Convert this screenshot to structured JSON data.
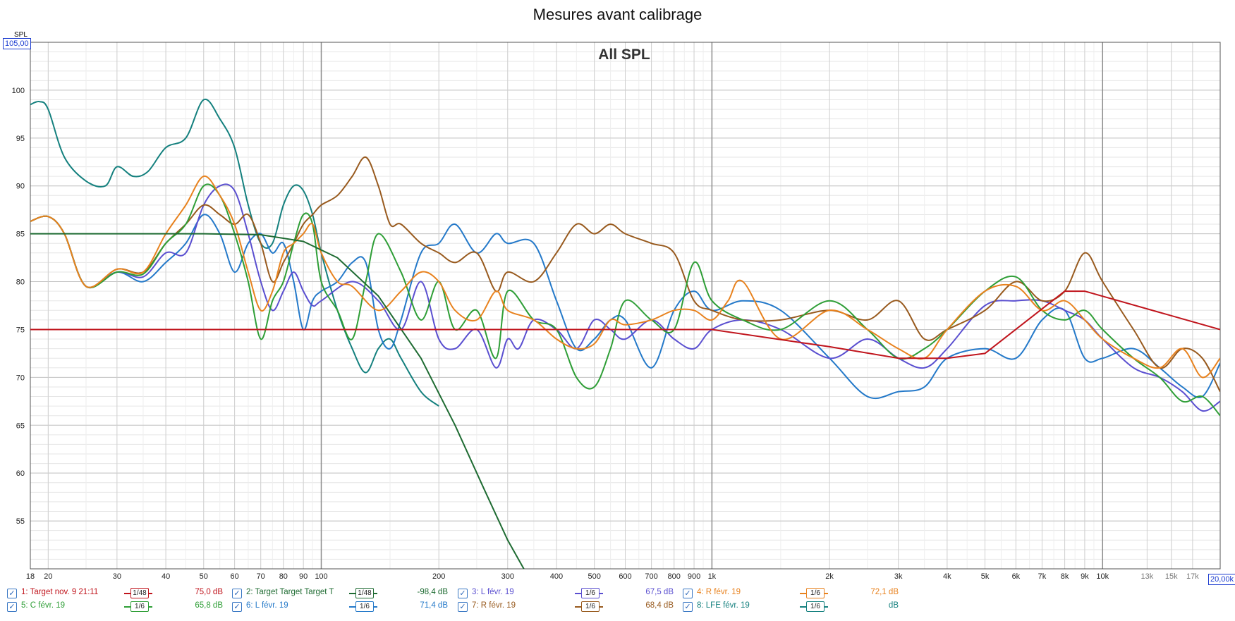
{
  "title": "Mesures avant calibrage",
  "y_axis_unit": "SPL",
  "y_max_box": "105,00",
  "x_max_box": "20,00k",
  "chart_data": {
    "type": "line",
    "title": "All SPL",
    "x_scale": "log",
    "xlim": [
      18,
      20000
    ],
    "ylim": [
      50,
      105
    ],
    "grid": true,
    "y_ticks": [
      "55",
      "60",
      "65",
      "70",
      "75",
      "80",
      "85",
      "90",
      "95",
      "100"
    ],
    "x_ticks": [
      "18",
      "20",
      "30",
      "40",
      "50",
      "60",
      "70",
      "80",
      "90",
      "100",
      "200",
      "300",
      "400",
      "500",
      "600",
      "700",
      "800",
      "900",
      "1k",
      "2k",
      "3k",
      "4k",
      "5k",
      "6k",
      "7k",
      "8k",
      "9k",
      "10k",
      "13k",
      "15k",
      "17k"
    ],
    "series": [
      {
        "name": "1: Target nov. 9 21:11",
        "color": "#c0141c",
        "smoothing": "1/48",
        "level": "75,0 dB",
        "x": [
          18,
          1000,
          2000,
          3000,
          4000,
          5000,
          8000,
          9000,
          20000
        ],
        "y": [
          75,
          75,
          73.2,
          72,
          72,
          72.5,
          79,
          79,
          75
        ]
      },
      {
        "name": "2: Target Target Target T",
        "color": "#1e6b32",
        "smoothing": "1/48",
        "level": "-98,4 dB",
        "x": [
          18,
          50,
          70,
          90,
          110,
          140,
          180,
          220,
          260,
          300,
          330
        ],
        "y": [
          85,
          85,
          84.9,
          84.2,
          82.5,
          78.5,
          72,
          65,
          58.5,
          53,
          50
        ]
      },
      {
        "name": "3: L févr. 19",
        "color": "#5a4fd0",
        "smoothing": "1/6",
        "level": "67,5 dB",
        "x": [
          18,
          20,
          22,
          25,
          30,
          35,
          40,
          45,
          50,
          55,
          60,
          65,
          70,
          75,
          80,
          85,
          90,
          95,
          100,
          120,
          140,
          160,
          180,
          200,
          220,
          250,
          280,
          300,
          320,
          350,
          400,
          450,
          500,
          550,
          600,
          700,
          800,
          900,
          1000,
          1200,
          1500,
          2000,
          2500,
          3000,
          3500,
          4000,
          5000,
          6000,
          7000,
          8000,
          9000,
          10000,
          12000,
          14000,
          16000,
          18000,
          20000
        ],
        "y": [
          86.3,
          86.8,
          85,
          79.5,
          81,
          80.5,
          83,
          83,
          88,
          90,
          89.5,
          85,
          80,
          77,
          79,
          81,
          79,
          77.5,
          78,
          80,
          78,
          75,
          80,
          74,
          73,
          75,
          71,
          74,
          73,
          76,
          75,
          73,
          76,
          75,
          74,
          76,
          74,
          73,
          75,
          76,
          75,
          72,
          74,
          72,
          71,
          73,
          77.5,
          78,
          78,
          77,
          76,
          74,
          71,
          70,
          68.5,
          66.5,
          67.5
        ]
      },
      {
        "name": "4: R févr. 19",
        "color": "#e8821e",
        "smoothing": "1/6",
        "level": "72,1 dB",
        "x": [
          18,
          20,
          22,
          25,
          30,
          35,
          40,
          45,
          50,
          55,
          60,
          65,
          70,
          75,
          80,
          85,
          90,
          95,
          100,
          110,
          120,
          140,
          160,
          180,
          200,
          220,
          250,
          280,
          300,
          350,
          400,
          450,
          500,
          550,
          600,
          700,
          800,
          900,
          1000,
          1100,
          1200,
          1500,
          2000,
          2500,
          3000,
          3500,
          4000,
          5000,
          6000,
          7000,
          8000,
          9000,
          10000,
          12000,
          14000,
          16000,
          18000,
          20000
        ],
        "y": [
          86.3,
          86.8,
          85,
          79.5,
          81.3,
          81,
          85,
          88,
          91,
          89,
          86,
          81,
          77,
          79,
          83,
          84,
          85,
          86,
          83,
          80,
          79.5,
          77,
          79,
          81,
          80,
          77,
          76,
          79,
          77,
          76,
          74,
          73,
          73.5,
          76,
          75.5,
          76,
          77,
          77,
          76,
          78,
          80,
          74,
          77,
          75,
          73,
          72,
          75,
          79,
          79.5,
          77,
          78,
          76,
          74,
          72,
          71,
          73,
          70,
          72
        ]
      },
      {
        "name": "5: C févr. 19",
        "color": "#2e9e36",
        "smoothing": "1/6",
        "level": "65,8 dB",
        "x": [
          18,
          20,
          22,
          25,
          30,
          35,
          40,
          45,
          50,
          55,
          60,
          65,
          70,
          75,
          80,
          85,
          90,
          95,
          100,
          110,
          120,
          130,
          140,
          160,
          180,
          200,
          220,
          250,
          280,
          300,
          350,
          400,
          450,
          500,
          550,
          600,
          700,
          800,
          900,
          1000,
          1200,
          1500,
          2000,
          2500,
          3000,
          3500,
          4000,
          5000,
          6000,
          7000,
          8000,
          9000,
          10000,
          12000,
          14000,
          16000,
          18000,
          20000
        ],
        "y": [
          86.3,
          86.8,
          85,
          79.5,
          81,
          80.8,
          84,
          86,
          90,
          89,
          85,
          80,
          74,
          78,
          80,
          84,
          87,
          86,
          80,
          77,
          74,
          80,
          85,
          81,
          76,
          80,
          75,
          77,
          72,
          79,
          76,
          75,
          70,
          69,
          73,
          78,
          76,
          75,
          82,
          78,
          76,
          75,
          78,
          75,
          72,
          73,
          75,
          79,
          80.5,
          77,
          76,
          77,
          75,
          72,
          70,
          67.5,
          68,
          66
        ]
      },
      {
        "name": "6: L févr. 19",
        "color": "#2479c9",
        "smoothing": "1/6",
        "level": "71,4 dB",
        "x": [
          18,
          20,
          22,
          25,
          30,
          35,
          40,
          45,
          50,
          55,
          60,
          65,
          70,
          75,
          80,
          85,
          90,
          95,
          100,
          110,
          120,
          130,
          140,
          150,
          160,
          180,
          200,
          220,
          250,
          280,
          300,
          350,
          400,
          450,
          500,
          550,
          600,
          700,
          800,
          900,
          1000,
          1200,
          1500,
          2000,
          2500,
          3000,
          3500,
          4000,
          5000,
          6000,
          7000,
          8000,
          9000,
          10000,
          12000,
          14000,
          16000,
          18000,
          20000
        ],
        "y": [
          86.3,
          86.8,
          85,
          79.5,
          81,
          80,
          82,
          84,
          87,
          85,
          81,
          84,
          85,
          83,
          84,
          80,
          75,
          78,
          79,
          80,
          82,
          82,
          75,
          73,
          76,
          83,
          84,
          86,
          83,
          85,
          84,
          84,
          78,
          73,
          74,
          76,
          76,
          71,
          77,
          79,
          77,
          78,
          77,
          72,
          68,
          68.5,
          69,
          72,
          73,
          72,
          76,
          77,
          72,
          72,
          73,
          71,
          69,
          68,
          71.5
        ]
      },
      {
        "name": "7: R févr. 19",
        "color": "#985a1e",
        "smoothing": "1/6",
        "level": "68,4 dB",
        "x": [
          18,
          20,
          22,
          25,
          30,
          35,
          40,
          45,
          50,
          55,
          60,
          65,
          70,
          75,
          80,
          85,
          90,
          95,
          100,
          110,
          120,
          130,
          140,
          150,
          160,
          180,
          200,
          220,
          250,
          280,
          300,
          350,
          400,
          450,
          500,
          550,
          600,
          700,
          800,
          900,
          1000,
          1200,
          1500,
          2000,
          2500,
          3000,
          3500,
          4000,
          5000,
          6000,
          7000,
          8000,
          9000,
          10000,
          12000,
          14000,
          16000,
          18000,
          20000
        ],
        "y": [
          86.3,
          86.8,
          85,
          79.5,
          81.3,
          81,
          84,
          86,
          88,
          87,
          86,
          87,
          84,
          80,
          82,
          84,
          86,
          87,
          88,
          89,
          91,
          93,
          90,
          86,
          86,
          84,
          83,
          82,
          83,
          79,
          81,
          80,
          83,
          86,
          85,
          86,
          85,
          84,
          83,
          78,
          77,
          76,
          76,
          77,
          76,
          78,
          74,
          75,
          77,
          80,
          78,
          79,
          83,
          80,
          75,
          71,
          73,
          72,
          68.5
        ]
      },
      {
        "name": "8: LFE févr. 19",
        "color": "#14807e",
        "smoothing": "1/6",
        "level": "",
        "x": [
          18,
          19,
          20,
          22,
          25,
          28,
          30,
          33,
          36,
          40,
          45,
          50,
          55,
          60,
          65,
          70,
          75,
          80,
          85,
          90,
          95,
          100,
          110,
          120,
          130,
          140,
          150,
          160,
          180,
          200
        ],
        "y": [
          98.5,
          98.8,
          98,
          93,
          90.5,
          90,
          92,
          91,
          91.5,
          94,
          95,
          99,
          97,
          94,
          88,
          84,
          84,
          88,
          90,
          89.5,
          87,
          83,
          77,
          73,
          70.5,
          73,
          74,
          72,
          68.5,
          67
        ]
      }
    ]
  }
}
